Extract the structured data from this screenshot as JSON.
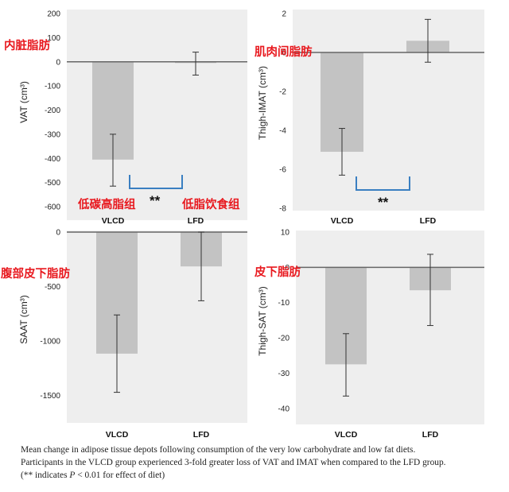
{
  "chart_data": [
    {
      "type": "bar",
      "chinese_label": "内脏脂肪",
      "ylabel": "VAT (cm³)",
      "categories": [
        "VLCD",
        "LFD"
      ],
      "category_annotations": [
        "低碳高脂组",
        "低脂饮食组"
      ],
      "values": [
        -405,
        -5
      ],
      "error_low": [
        -515,
        -55
      ],
      "error_high": [
        -300,
        40
      ],
      "ylim": [
        -600,
        200
      ],
      "yticks": [
        200,
        100,
        0,
        -100,
        -200,
        -300,
        -400,
        -500,
        -600
      ],
      "ytick_labels": [
        "200",
        "100",
        "0",
        "-100",
        "-200",
        "-300",
        "-400",
        "-500",
        "-600"
      ],
      "significance": "**",
      "significance_color": "#3a7fc1"
    },
    {
      "type": "bar",
      "chinese_label": "肌肉间脂肪",
      "ylabel": "Thigh-IMAT (cm³)",
      "categories": [
        "VLCD",
        "LFD"
      ],
      "values": [
        -5.1,
        0.6
      ],
      "error_low": [
        -6.3,
        -0.5
      ],
      "error_high": [
        -3.9,
        1.7
      ],
      "ylim": [
        -8,
        2
      ],
      "yticks": [
        2,
        0,
        -2,
        -4,
        -6,
        -8
      ],
      "ytick_labels": [
        "2",
        "0",
        "-2",
        "-4",
        "-6",
        "-8"
      ],
      "significance": "**",
      "significance_color": "#3a7fc1"
    },
    {
      "type": "bar",
      "chinese_label": "腹部皮下脂肪",
      "ylabel": "SAAT (cm³)",
      "categories": [
        "VLCD",
        "LFD"
      ],
      "values": [
        -1115,
        -315
      ],
      "error_low": [
        -1470,
        -630
      ],
      "error_high": [
        -760,
        0
      ],
      "ylim": [
        -1750,
        0
      ],
      "yticks": [
        0,
        -500,
        -1000,
        -1500
      ],
      "ytick_labels": [
        "0",
        "-500",
        "-1000",
        "-1500"
      ]
    },
    {
      "type": "bar",
      "chinese_label": "皮下脂肪",
      "ylabel": "Thigh-SAT (cm³)",
      "categories": [
        "VLCD",
        "LFD"
      ],
      "values": [
        -27.5,
        -6.5
      ],
      "error_low": [
        -36.5,
        -16.5
      ],
      "error_high": [
        -18.8,
        3.7
      ],
      "ylim": [
        -45,
        10
      ],
      "yticks": [
        10,
        0,
        -10,
        -20,
        -30,
        -40
      ],
      "ytick_labels": [
        "10",
        "0",
        "-10",
        "-20",
        "-30",
        "-40"
      ]
    }
  ],
  "colors": {
    "bar": "#c3c3c3",
    "panel": "#eeeeee",
    "zero_line": "#666666",
    "annotation": "#e8191f",
    "bracket": "#3a7fc1"
  },
  "caption": {
    "line1": "Mean change in adipose tissue depots following consumption of the very low carbohydrate and low fat diets.",
    "line2": "Participants in the VLCD group experienced 3-fold greater loss of VAT and IMAT when compared to the LFD group.",
    "line3_prefix": "(** indicates ",
    "line3_p": "P",
    "line3_suffix": " < 0.01 for effect of diet)"
  }
}
